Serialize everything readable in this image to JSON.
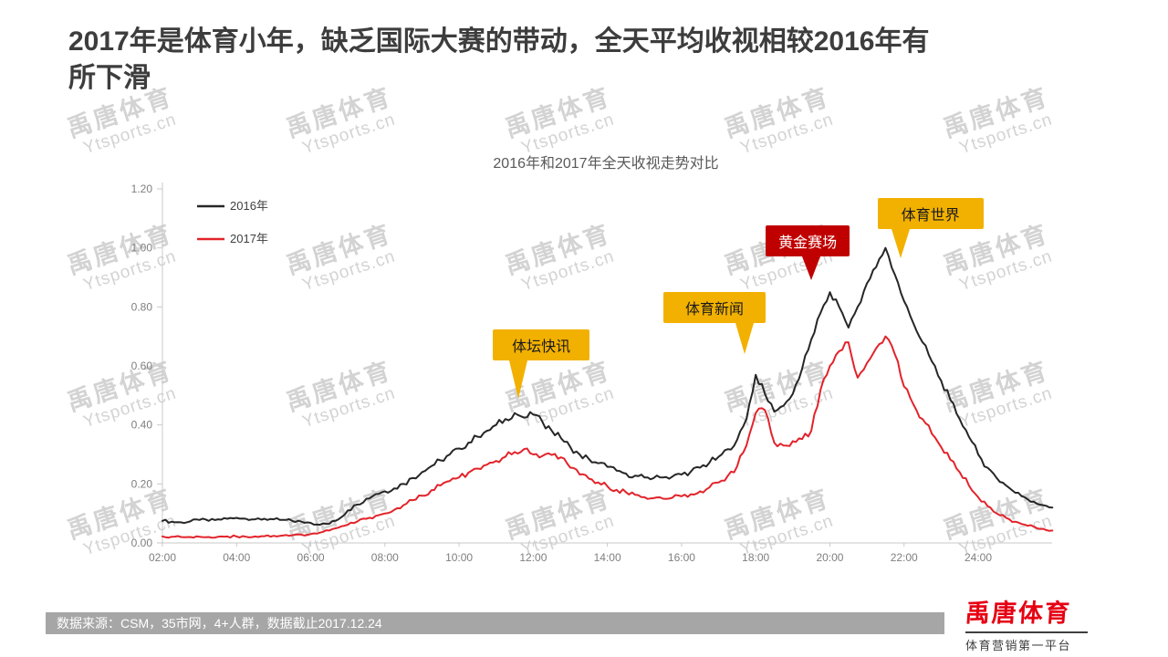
{
  "title": "2017年是体育小年，缺乏国际大赛的带动，全天平均收视相较2016年有所下滑",
  "watermark": {
    "line1": "禹唐体育",
    "line2": "Ytsports.cn"
  },
  "footer": {
    "source": "数据来源：CSM，35市网，4+人群，数据截止2017.12.24"
  },
  "logo": {
    "name": "禹唐体育",
    "tagline": "体育营销第一平台"
  },
  "chart_data": {
    "type": "line",
    "title": "2016年和2017年全天收视走势对比",
    "x_start_hour": 2,
    "x_step_hours": 0.25,
    "x_end_hour": 26,
    "ylim": [
      0,
      1.2
    ],
    "yticks": [
      0,
      0.2,
      0.4,
      0.6,
      0.8,
      1.0,
      1.2
    ],
    "ytick_labels": [
      "0.00",
      "0.20",
      "0.40",
      "0.60",
      "0.80",
      "1.00",
      "1.20"
    ],
    "xticks": [
      2,
      4,
      6,
      8,
      10,
      12,
      14,
      16,
      18,
      20,
      22,
      24
    ],
    "xtick_labels": [
      "02:00",
      "04:00",
      "06:00",
      "08:00",
      "10:00",
      "12:00",
      "14:00",
      "16:00",
      "18:00",
      "20:00",
      "22:00",
      "24:00"
    ],
    "grid": false,
    "legend_position": "top-left",
    "series": [
      {
        "name": "2016年",
        "color": "#262626",
        "values": [
          0.075,
          0.072,
          0.07,
          0.073,
          0.078,
          0.075,
          0.08,
          0.082,
          0.085,
          0.082,
          0.08,
          0.082,
          0.08,
          0.078,
          0.075,
          0.072,
          0.068,
          0.062,
          0.065,
          0.08,
          0.11,
          0.13,
          0.15,
          0.165,
          0.175,
          0.185,
          0.2,
          0.22,
          0.24,
          0.26,
          0.28,
          0.3,
          0.32,
          0.34,
          0.36,
          0.38,
          0.4,
          0.42,
          0.44,
          0.425,
          0.435,
          0.41,
          0.38,
          0.355,
          0.325,
          0.3,
          0.285,
          0.27,
          0.258,
          0.245,
          0.235,
          0.228,
          0.222,
          0.22,
          0.222,
          0.225,
          0.232,
          0.242,
          0.255,
          0.272,
          0.292,
          0.318,
          0.35,
          0.42,
          0.57,
          0.505,
          0.445,
          0.465,
          0.505,
          0.59,
          0.69,
          0.78,
          0.85,
          0.8,
          0.73,
          0.8,
          0.88,
          0.935,
          1.0,
          0.91,
          0.82,
          0.745,
          0.68,
          0.615,
          0.55,
          0.485,
          0.42,
          0.36,
          0.3,
          0.255,
          0.22,
          0.195,
          0.17,
          0.155,
          0.14,
          0.128,
          0.12
        ]
      },
      {
        "name": "2017年",
        "color": "#e2232a",
        "values": [
          0.022,
          0.021,
          0.02,
          0.02,
          0.021,
          0.02,
          0.021,
          0.022,
          0.022,
          0.021,
          0.022,
          0.023,
          0.024,
          0.025,
          0.026,
          0.028,
          0.03,
          0.035,
          0.042,
          0.052,
          0.062,
          0.072,
          0.082,
          0.092,
          0.1,
          0.112,
          0.128,
          0.145,
          0.16,
          0.178,
          0.195,
          0.21,
          0.222,
          0.238,
          0.252,
          0.265,
          0.278,
          0.292,
          0.308,
          0.318,
          0.3,
          0.295,
          0.298,
          0.29,
          0.255,
          0.232,
          0.218,
          0.205,
          0.192,
          0.18,
          0.172,
          0.163,
          0.155,
          0.152,
          0.15,
          0.153,
          0.158,
          0.165,
          0.175,
          0.188,
          0.205,
          0.228,
          0.26,
          0.33,
          0.44,
          0.45,
          0.34,
          0.33,
          0.345,
          0.352,
          0.38,
          0.52,
          0.6,
          0.65,
          0.68,
          0.56,
          0.61,
          0.66,
          0.7,
          0.64,
          0.53,
          0.47,
          0.42,
          0.37,
          0.325,
          0.282,
          0.24,
          0.195,
          0.155,
          0.125,
          0.1,
          0.085,
          0.072,
          0.062,
          0.055,
          0.048,
          0.042
        ]
      }
    ],
    "annotations": [
      {
        "label": "体坛快讯",
        "hour": 11.6,
        "bg": "#f2b100",
        "fg": "#1a1a1a"
      },
      {
        "label": "体育新闻",
        "hour": 17.7,
        "bg": "#f2b100",
        "fg": "#1a1a1a"
      },
      {
        "label": "黄金赛场",
        "hour": 19.5,
        "bg": "#c00000",
        "fg": "#ffffff"
      },
      {
        "label": "体育世界",
        "hour": 21.9,
        "bg": "#f2b100",
        "fg": "#1a1a1a"
      }
    ]
  }
}
